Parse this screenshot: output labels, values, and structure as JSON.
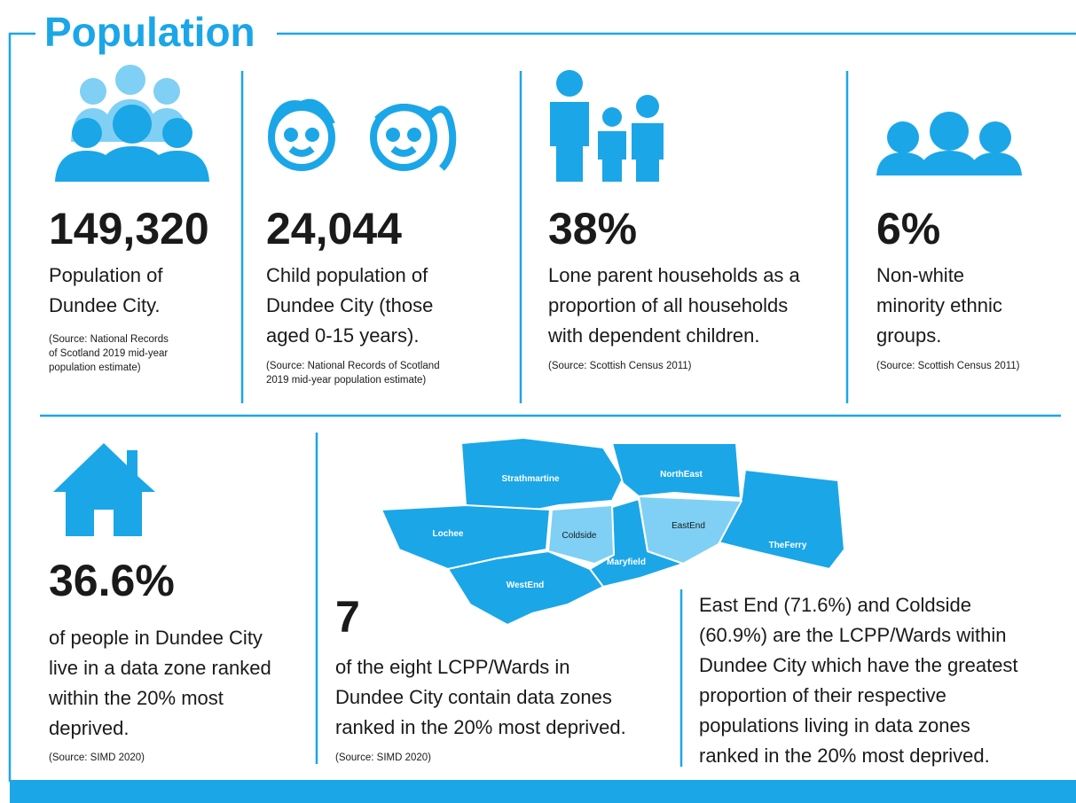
{
  "header": {
    "title": "Population"
  },
  "stats": [
    {
      "value": "149,320",
      "description": [
        "Population of",
        "Dundee City."
      ],
      "source": [
        "(Source: National Records",
        "of Scotland 2019 mid-year",
        "population estimate)"
      ]
    },
    {
      "value": "24,044",
      "description": [
        "Child population of",
        "Dundee City (those",
        "aged 0-15 years)."
      ],
      "source": [
        "(Source: National Records of Scotland",
        "2019 mid-year population estimate)"
      ]
    },
    {
      "value": "38%",
      "description": [
        "Lone parent households as a",
        "proportion of all households",
        "with dependent children."
      ],
      "source": [
        "(Source: Scottish Census 2011)"
      ]
    },
    {
      "value": "6%",
      "description": [
        "Non-white",
        "minority ethnic",
        "groups."
      ],
      "source": [
        "(Source: Scottish Census 2011)"
      ]
    },
    {
      "value": "36.6%",
      "description": [
        "of people in Dundee City",
        "live in a data zone ranked",
        "within the 20% most",
        "deprived."
      ],
      "source": [
        "(Source: SIMD 2020)"
      ]
    },
    {
      "value": "7",
      "description": [
        "of the eight LCPP/Wards in",
        "Dundee City contain data zones",
        "ranked in the 20% most deprived."
      ],
      "source": [
        "(Source: SIMD 2020)"
      ]
    }
  ],
  "map": {
    "labels": [
      "Strathmartine",
      "NorthEast",
      "Lochee",
      "Coldside",
      "EastEnd",
      "TheFerry",
      "Maryfield",
      "WestEnd"
    ]
  },
  "note": [
    "East End (71.6%) and Coldside",
    "(60.9%) are the LCPP/Wards within",
    "Dundee City which have the greatest",
    "proportion of their respective",
    "populations living in data zones",
    "ranked in the 20% most deprived."
  ]
}
